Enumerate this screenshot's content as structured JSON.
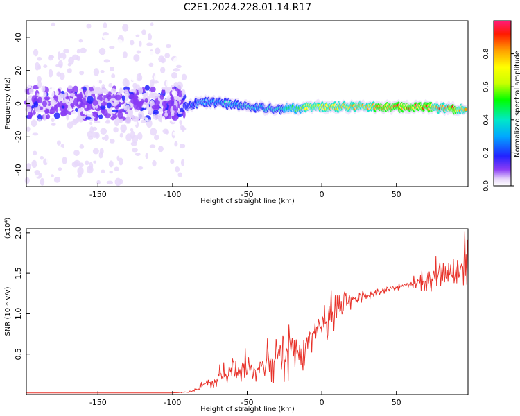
{
  "title": "C2E1.2024.228.01.14.R17",
  "chart_data": [
    {
      "type": "heatmap",
      "xlabel": "Height of straight line (km)",
      "ylabel": "Frequency (Hz)",
      "xlim": [
        -198,
        98
      ],
      "ylim": [
        -50,
        50
      ],
      "x_ticks": [
        -150,
        -100,
        -50,
        0,
        50
      ],
      "y_ticks": [
        -40,
        -20,
        0,
        20,
        40
      ],
      "colorbar": {
        "label": "Normalized spectral amplitude",
        "range": [
          0,
          1
        ],
        "ticks": [
          "0.0",
          "0.2",
          "0.4",
          "0.6",
          "0.8"
        ]
      },
      "noise_region_x": [
        -198,
        -92
      ],
      "ridge": {
        "x": [
          -90,
          -80,
          -70,
          -60,
          -50,
          -40,
          -30,
          -20,
          -10,
          0,
          10,
          20,
          30,
          40,
          50,
          60,
          70,
          80,
          90,
          98
        ],
        "frequency": [
          -1,
          1,
          0.5,
          -0.5,
          -1.5,
          -2.5,
          -4,
          -3,
          -2,
          -2,
          -2,
          -2,
          -2,
          -2,
          -2,
          -2,
          -2,
          -2.5,
          -3.5,
          -3.5
        ],
        "amplitude": [
          0.3,
          0.35,
          0.4,
          0.45,
          0.5,
          0.45,
          0.5,
          0.6,
          0.75,
          0.85,
          0.9,
          0.92,
          0.94,
          0.95,
          0.96,
          0.95,
          0.95,
          0.94,
          0.95,
          0.9
        ]
      }
    },
    {
      "type": "line",
      "xlabel": "Height of straight line (km)",
      "ylabel": "SNR (10 * v/v)",
      "scale_label": "(x10⁴)",
      "xlim": [
        -198,
        98
      ],
      "ylim": [
        0,
        2.05
      ],
      "x_ticks": [
        -150,
        -100,
        -50,
        0,
        50
      ],
      "y_ticks": [
        0.5,
        1.0,
        1.5,
        2.0
      ],
      "y_tick_labels": [
        "0.5",
        "1.0",
        "1.5",
        "2.0"
      ],
      "color": "#e8322a",
      "series": [
        {
          "x": [
            -198,
            -180,
            -160,
            -140,
            -120,
            -100,
            -90,
            -85,
            -80,
            -75,
            -70,
            -65,
            -60,
            -55,
            -50,
            -45,
            -40,
            -35,
            -30,
            -25,
            -20,
            -15,
            -10,
            -5,
            0,
            5,
            10,
            15,
            20,
            25,
            30,
            35,
            40,
            45,
            50,
            55,
            60,
            65,
            70,
            75,
            80,
            85,
            90,
            95,
            98
          ],
          "y": [
            0.02,
            0.02,
            0.02,
            0.02,
            0.02,
            0.02,
            0.03,
            0.06,
            0.12,
            0.15,
            0.18,
            0.22,
            0.25,
            0.3,
            0.33,
            0.32,
            0.35,
            0.4,
            0.45,
            0.5,
            0.55,
            0.55,
            0.58,
            0.8,
            0.85,
            0.9,
            1.0,
            1.1,
            1.15,
            1.2,
            1.22,
            1.25,
            1.28,
            1.3,
            1.32,
            1.35,
            1.37,
            1.38,
            1.4,
            1.45,
            1.48,
            1.45,
            1.5,
            1.55,
            1.55
          ],
          "spread": [
            0,
            0,
            0,
            0,
            0,
            0,
            0.01,
            0.04,
            0.08,
            0.12,
            0.18,
            0.2,
            0.22,
            0.25,
            0.28,
            0.3,
            0.3,
            0.35,
            0.38,
            0.4,
            0.45,
            0.45,
            0.5,
            0.4,
            0.35,
            0.35,
            0.35,
            0.25,
            0.15,
            0.1,
            0.08,
            0.06,
            0.05,
            0.05,
            0.05,
            0.05,
            0.06,
            0.25,
            0.3,
            0.3,
            0.25,
            0.2,
            0.3,
            0.5,
            0.6
          ]
        }
      ]
    }
  ]
}
